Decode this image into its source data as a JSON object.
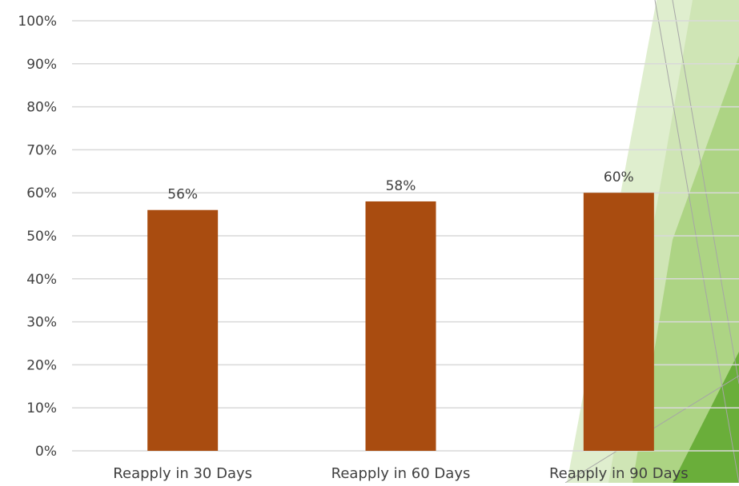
{
  "chart_data": {
    "type": "bar",
    "categories": [
      "Reapply in 30 Days",
      "Reapply in 60 Days",
      "Reapply in 90 Days"
    ],
    "values": [
      56,
      58,
      60
    ],
    "data_labels": [
      "56%",
      "58%",
      "60%"
    ],
    "y_ticks": [
      "0%",
      "10%",
      "20%",
      "30%",
      "40%",
      "50%",
      "60%",
      "70%",
      "80%",
      "90%",
      "100%"
    ],
    "ylim": [
      0,
      100
    ],
    "grid": true,
    "legend": "none",
    "bar_color": "#A94C10",
    "gridline_color": "#D9D9D9",
    "text_color": "#404040"
  },
  "theme": {
    "accent_light": "#C5E0A5",
    "accent_mid": "#9BCB6A",
    "accent_dark": "#6AAE3A",
    "line_color": "#A6A6A6"
  }
}
